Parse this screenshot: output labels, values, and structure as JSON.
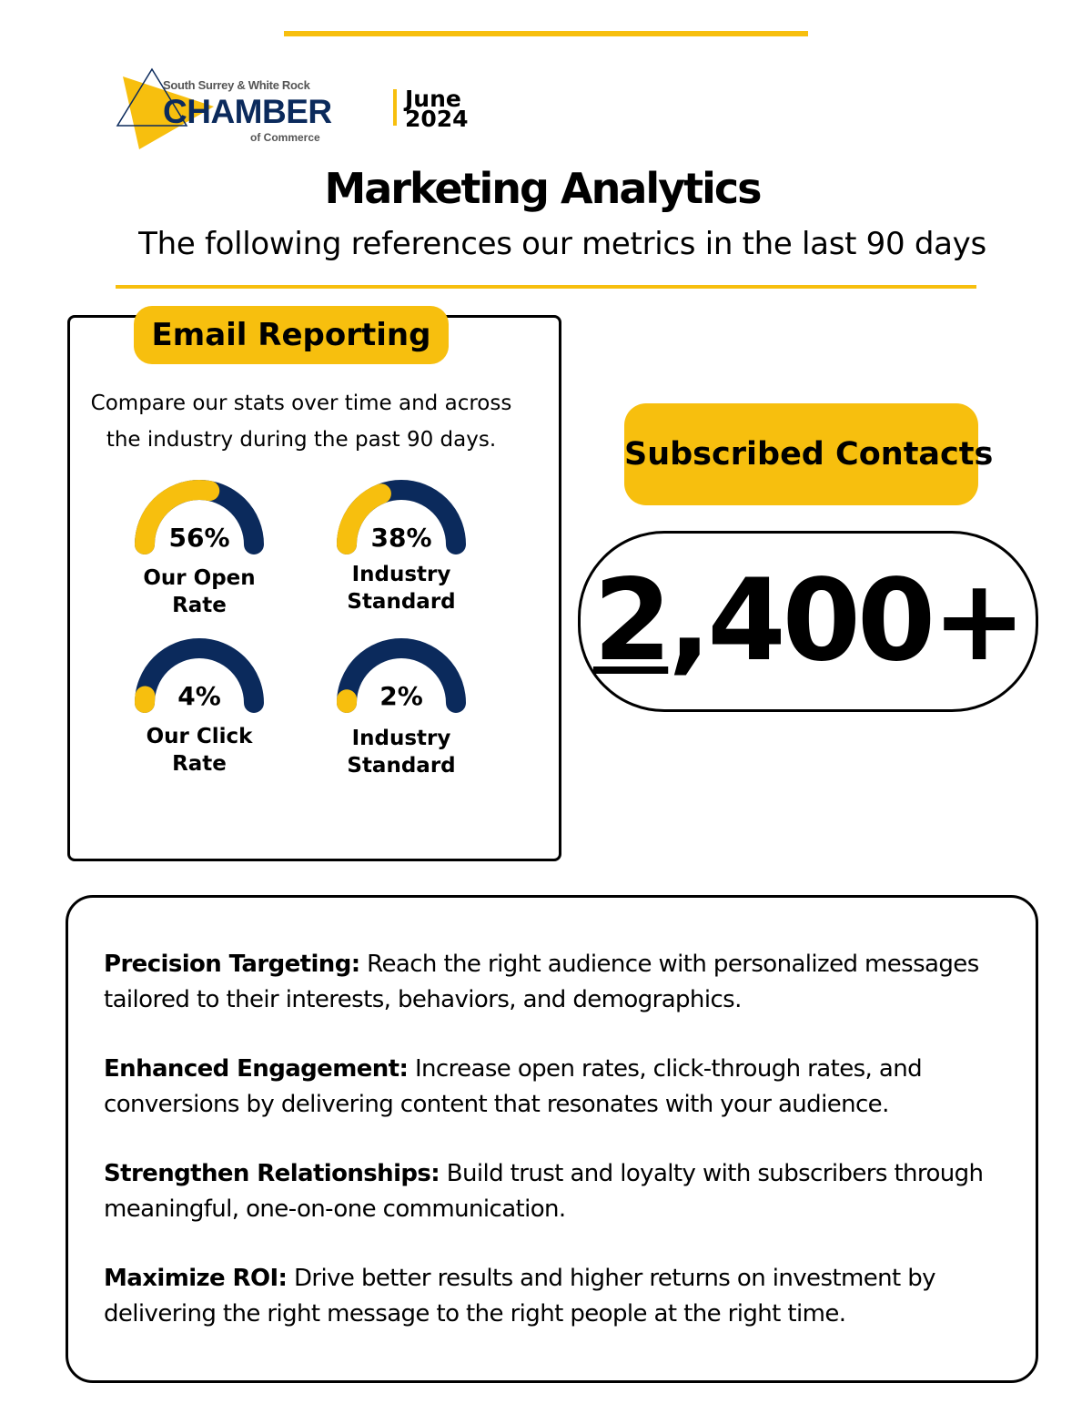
{
  "header": {
    "logo": {
      "line1": "South Surrey & White Rock",
      "line2": "CHAMBER",
      "line3": "of Commerce"
    },
    "date_month": "June",
    "date_year": "2024",
    "title": "Marketing Analytics",
    "subtitle": "The following references our metrics in the last 90 days"
  },
  "colors": {
    "accent": "#f7bf0e",
    "navy": "#0b2a5c"
  },
  "email_reporting": {
    "heading": "Email Reporting",
    "description": "Compare our stats over time and across the industry during the past 90 days.",
    "gauges": [
      {
        "value": 56,
        "display": "56%",
        "label": "Our Open Rate"
      },
      {
        "value": 38,
        "display": "38%",
        "label": "Industry Standard"
      },
      {
        "value": 4,
        "display": "4%",
        "label": "Our Click Rate"
      },
      {
        "value": 2,
        "display": "2%",
        "label": "Industry Standard"
      }
    ]
  },
  "subscribers": {
    "heading": "Subscribed Contacts",
    "count_first": "2",
    "count_rest": ",400+"
  },
  "benefits": [
    {
      "title": "Precision Targeting:",
      "text": " Reach the right audience with personalized messages tailored to their interests, behaviors, and demographics."
    },
    {
      "title": "Enhanced Engagement:",
      "text": " Increase open rates, click-through rates, and conversions by delivering content that resonates with your audience."
    },
    {
      "title": "Strengthen Relationships:",
      "text": " Build trust and loyalty with subscribers through meaningful, one-on-one communication."
    },
    {
      "title": "Maximize ROI:",
      "text": " Drive better results and higher returns on investment by delivering the right message to the right people at the right time."
    }
  ]
}
